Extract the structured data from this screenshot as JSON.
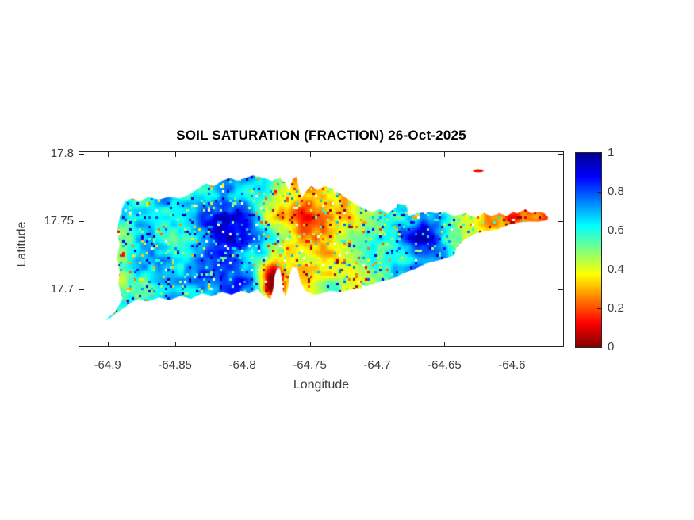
{
  "colors": {
    "background": "#ffffff",
    "axis_line": "#262626",
    "tick_text": "#3d3d3d",
    "title_text": "#000000"
  },
  "chart_data": {
    "type": "heatmap",
    "title": "SOIL SATURATION (FRACTION) 26-Oct-2025",
    "xlabel": "Longitude",
    "ylabel": "Latitude",
    "x_range": [
      -64.921,
      -64.562
    ],
    "y_range": [
      17.658,
      17.801
    ],
    "grid": false,
    "x_ticks": {
      "values": [
        -64.9,
        -64.85,
        -64.8,
        -64.75,
        -64.7,
        -64.65,
        -64.6
      ],
      "labels": [
        "-64.9",
        "-64.85",
        "-64.8",
        "-64.75",
        "-64.7",
        "-64.65",
        "-64.6"
      ]
    },
    "y_ticks": {
      "values": [
        17.7,
        17.75,
        17.8
      ],
      "labels": [
        "17.7",
        "17.75",
        "17.8"
      ]
    },
    "colorbar": {
      "min": 0,
      "max": 1,
      "position": "right",
      "tick_values": [
        0,
        0.2,
        0.4,
        0.6,
        0.8,
        1
      ],
      "tick_labels": [
        "0",
        "0.2",
        "0.4",
        "0.6",
        "0.8",
        "1"
      ]
    },
    "colormap": {
      "name": "jet-reversed",
      "stops": [
        [
          0.0,
          "#7f0000"
        ],
        [
          0.125,
          "#ff0000"
        ],
        [
          0.375,
          "#ffff00"
        ],
        [
          0.625,
          "#00ffff"
        ],
        [
          0.875,
          "#0000ff"
        ],
        [
          1.0,
          "#000090"
        ]
      ]
    },
    "island_outline": [
      [
        -64.902,
        17.677
      ],
      [
        -64.894,
        17.684
      ],
      [
        -64.889,
        17.693
      ],
      [
        -64.892,
        17.704
      ],
      [
        -64.891,
        17.713
      ],
      [
        -64.893,
        17.723
      ],
      [
        -64.891,
        17.733
      ],
      [
        -64.893,
        17.743
      ],
      [
        -64.891,
        17.753
      ],
      [
        -64.889,
        17.76
      ],
      [
        -64.887,
        17.765
      ],
      [
        -64.882,
        17.767
      ],
      [
        -64.876,
        17.765
      ],
      [
        -64.87,
        17.768
      ],
      [
        -64.862,
        17.766
      ],
      [
        -64.855,
        17.768
      ],
      [
        -64.846,
        17.767
      ],
      [
        -64.839,
        17.77
      ],
      [
        -64.833,
        17.774
      ],
      [
        -64.827,
        17.778
      ],
      [
        -64.821,
        17.776
      ],
      [
        -64.815,
        17.78
      ],
      [
        -64.809,
        17.782
      ],
      [
        -64.804,
        17.78
      ],
      [
        -64.798,
        17.782
      ],
      [
        -64.792,
        17.784
      ],
      [
        -64.784,
        17.782
      ],
      [
        -64.778,
        17.78
      ],
      [
        -64.772,
        17.782
      ],
      [
        -64.768,
        17.778
      ],
      [
        -64.765,
        17.772
      ],
      [
        -64.763,
        17.781
      ],
      [
        -64.76,
        17.783
      ],
      [
        -64.758,
        17.774
      ],
      [
        -64.756,
        17.767
      ],
      [
        -64.753,
        17.772
      ],
      [
        -64.749,
        17.776
      ],
      [
        -64.744,
        17.773
      ],
      [
        -64.739,
        17.776
      ],
      [
        -64.733,
        17.774
      ],
      [
        -64.727,
        17.77
      ],
      [
        -64.721,
        17.766
      ],
      [
        -64.715,
        17.762
      ],
      [
        -64.709,
        17.759
      ],
      [
        -64.704,
        17.757
      ],
      [
        -64.698,
        17.759
      ],
      [
        -64.692,
        17.756
      ],
      [
        -64.686,
        17.76
      ],
      [
        -64.685,
        17.763
      ],
      [
        -64.678,
        17.762
      ],
      [
        -64.677,
        17.754
      ],
      [
        -64.67,
        17.756
      ],
      [
        -64.662,
        17.757
      ],
      [
        -64.656,
        17.756
      ],
      [
        -64.651,
        17.757
      ],
      [
        -64.643,
        17.754
      ],
      [
        -64.635,
        17.756
      ],
      [
        -64.627,
        17.753
      ],
      [
        -64.621,
        17.756
      ],
      [
        -64.615,
        17.754
      ],
      [
        -64.609,
        17.756
      ],
      [
        -64.604,
        17.754
      ],
      [
        -64.599,
        17.757
      ],
      [
        -64.596,
        17.756
      ],
      [
        -64.59,
        17.759
      ],
      [
        -64.586,
        17.756
      ],
      [
        -64.58,
        17.757
      ],
      [
        -64.576,
        17.756
      ],
      [
        -64.573,
        17.753
      ],
      [
        -64.574,
        17.751
      ],
      [
        -64.58,
        17.75
      ],
      [
        -64.588,
        17.75
      ],
      [
        -64.596,
        17.749
      ],
      [
        -64.604,
        17.747
      ],
      [
        -64.611,
        17.744
      ],
      [
        -64.619,
        17.743
      ],
      [
        -64.627,
        17.741
      ],
      [
        -64.635,
        17.737
      ],
      [
        -64.641,
        17.731
      ],
      [
        -64.643,
        17.725
      ],
      [
        -64.649,
        17.723
      ],
      [
        -64.656,
        17.721
      ],
      [
        -64.664,
        17.719
      ],
      [
        -64.672,
        17.715
      ],
      [
        -64.68,
        17.712
      ],
      [
        -64.688,
        17.708
      ],
      [
        -64.696,
        17.706
      ],
      [
        -64.704,
        17.704
      ],
      [
        -64.711,
        17.701
      ],
      [
        -64.719,
        17.7
      ],
      [
        -64.727,
        17.698
      ],
      [
        -64.735,
        17.699
      ],
      [
        -64.741,
        17.697
      ],
      [
        -64.747,
        17.696
      ],
      [
        -64.753,
        17.699
      ],
      [
        -64.756,
        17.704
      ],
      [
        -64.758,
        17.71
      ],
      [
        -64.759,
        17.716
      ],
      [
        -64.763,
        17.717
      ],
      [
        -64.765,
        17.71
      ],
      [
        -64.766,
        17.702
      ],
      [
        -64.768,
        17.694
      ],
      [
        -64.77,
        17.7
      ],
      [
        -64.771,
        17.71
      ],
      [
        -64.772,
        17.715
      ],
      [
        -64.774,
        17.716
      ],
      [
        -64.776,
        17.71
      ],
      [
        -64.777,
        17.701
      ],
      [
        -64.779,
        17.693
      ],
      [
        -64.784,
        17.695
      ],
      [
        -64.789,
        17.7
      ],
      [
        -64.795,
        17.697
      ],
      [
        -64.801,
        17.699
      ],
      [
        -64.808,
        17.696
      ],
      [
        -64.815,
        17.698
      ],
      [
        -64.822,
        17.695
      ],
      [
        -64.83,
        17.697
      ],
      [
        -64.838,
        17.693
      ],
      [
        -64.846,
        17.695
      ],
      [
        -64.854,
        17.692
      ],
      [
        -64.862,
        17.694
      ],
      [
        -64.87,
        17.691
      ],
      [
        -64.877,
        17.693
      ],
      [
        -64.883,
        17.69
      ],
      [
        -64.888,
        17.686
      ],
      [
        -64.893,
        17.683
      ],
      [
        -64.898,
        17.679
      ]
    ],
    "islet": {
      "lon": [
        -64.629,
        -64.621
      ],
      "lat": [
        17.7862,
        17.7885
      ],
      "value": 0.12
    },
    "value_field": {
      "seed": 42,
      "base_curve": [
        [
          -64.93,
          0.58
        ],
        [
          -64.89,
          0.6
        ],
        [
          -64.86,
          0.62
        ],
        [
          -64.835,
          0.68
        ],
        [
          -64.815,
          0.76
        ],
        [
          -64.8,
          0.74
        ],
        [
          -64.785,
          0.6
        ],
        [
          -64.77,
          0.4
        ],
        [
          -64.755,
          0.3
        ],
        [
          -64.74,
          0.33
        ],
        [
          -64.725,
          0.38
        ],
        [
          -64.71,
          0.5
        ],
        [
          -64.695,
          0.58
        ],
        [
          -64.683,
          0.66
        ],
        [
          -64.668,
          0.76
        ],
        [
          -64.655,
          0.7
        ],
        [
          -64.645,
          0.55
        ],
        [
          -64.633,
          0.45
        ],
        [
          -64.62,
          0.35
        ],
        [
          -64.608,
          0.28
        ],
        [
          -64.596,
          0.22
        ],
        [
          -64.584,
          0.17
        ],
        [
          -64.57,
          0.14
        ],
        [
          -64.556,
          0.12
        ]
      ],
      "patches": [
        [
          -64.777,
          17.705,
          0.008,
          0.013,
          -0.58
        ],
        [
          -64.815,
          17.744,
          0.015,
          0.012,
          0.14
        ],
        [
          -64.801,
          17.706,
          0.012,
          0.009,
          0.12
        ],
        [
          -64.668,
          17.737,
          0.011,
          0.011,
          0.13
        ],
        [
          -64.746,
          17.754,
          0.016,
          0.014,
          -0.13
        ],
        [
          -64.87,
          17.701,
          0.014,
          0.01,
          -0.14
        ],
        [
          -64.737,
          17.701,
          0.016,
          0.007,
          0.22
        ]
      ],
      "noise": {
        "scale1": 26,
        "amp1": 0.22,
        "scale2": 9,
        "amp2": 0.16,
        "cell": 3
      }
    }
  }
}
